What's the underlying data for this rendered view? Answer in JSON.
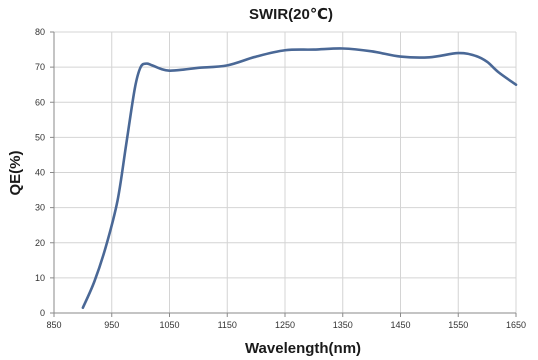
{
  "chart_data": {
    "type": "line",
    "title": "SWIR(20℃)",
    "xlabel": "Wavelength(nm)",
    "ylabel": "QE(%)",
    "xlim": [
      850,
      1650
    ],
    "ylim": [
      0,
      80
    ],
    "x_ticks": [
      850,
      950,
      1050,
      1150,
      1250,
      1350,
      1450,
      1550,
      1650
    ],
    "y_ticks": [
      0,
      10,
      20,
      30,
      40,
      50,
      60,
      70,
      80
    ],
    "grid": true,
    "legend": "none",
    "series": [
      {
        "color": "#4a6896",
        "x": [
          900,
          920,
          940,
          960,
          975,
          990,
          1000,
          1010,
          1020,
          1035,
          1050,
          1075,
          1100,
          1150,
          1200,
          1250,
          1300,
          1350,
          1400,
          1450,
          1500,
          1550,
          1580,
          1600,
          1620,
          1650
        ],
        "y": [
          1.5,
          9,
          19,
          32,
          48,
          64,
          70,
          71,
          70.5,
          69.5,
          69,
          69.3,
          69.8,
          70.5,
          73,
          74.8,
          75,
          75.3,
          74.5,
          73,
          72.8,
          74,
          73.2,
          71.5,
          68.5,
          65
        ]
      }
    ]
  }
}
